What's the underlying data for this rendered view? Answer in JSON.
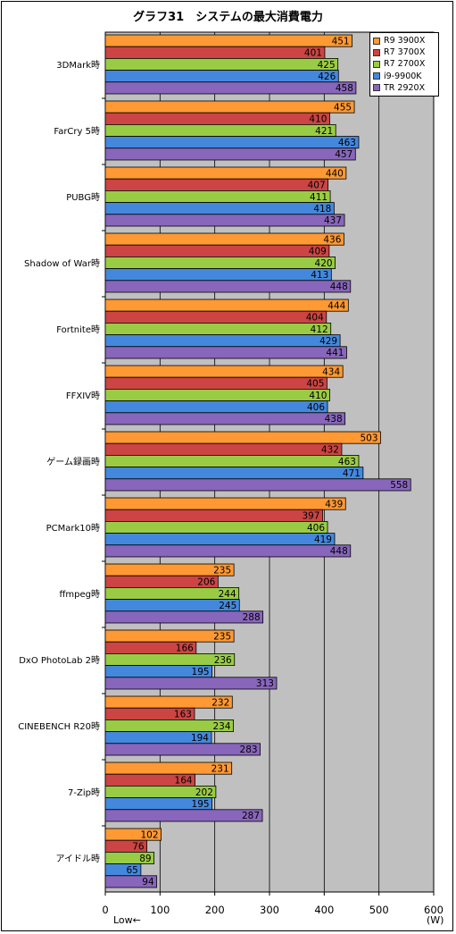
{
  "chart_data": {
    "type": "bar",
    "orientation": "horizontal",
    "title": "グラフ31　システムの最大消費電力",
    "categories": [
      "3DMark時",
      "FarCry 5時",
      "PUBG時",
      "Shadow of War時",
      "Fortnite時",
      "FFXIV時",
      "ゲーム録画時",
      "PCMark10時",
      "ffmpeg時",
      "DxO PhotoLab 2時",
      "CINEBENCH R20時",
      "7-Zip時",
      "アイドル時"
    ],
    "series": [
      {
        "name": "R9 3900X",
        "color": "#ff9933",
        "values": [
          451,
          455,
          440,
          436,
          444,
          434,
          503,
          439,
          235,
          235,
          232,
          231,
          102
        ]
      },
      {
        "name": "R7 3700X",
        "color": "#cc4444",
        "values": [
          401,
          410,
          407,
          409,
          404,
          405,
          432,
          397,
          206,
          166,
          163,
          164,
          76
        ]
      },
      {
        "name": "R7 2700X",
        "color": "#99cc44",
        "values": [
          425,
          421,
          411,
          420,
          412,
          410,
          463,
          406,
          244,
          236,
          234,
          202,
          89
        ]
      },
      {
        "name": "i9-9900K",
        "color": "#4488dd",
        "values": [
          426,
          463,
          418,
          413,
          429,
          406,
          471,
          419,
          245,
          195,
          194,
          195,
          65
        ]
      },
      {
        "name": "TR 2920X",
        "color": "#8866bb",
        "values": [
          458,
          457,
          437,
          448,
          441,
          438,
          558,
          448,
          288,
          313,
          283,
          287,
          94
        ]
      }
    ],
    "xlim": [
      0,
      600
    ],
    "xticks": [
      0,
      100,
      200,
      300,
      400,
      500,
      600
    ],
    "xunit": "(W)",
    "annotation": "Low←",
    "grid": true,
    "legend_position": "top-right"
  }
}
